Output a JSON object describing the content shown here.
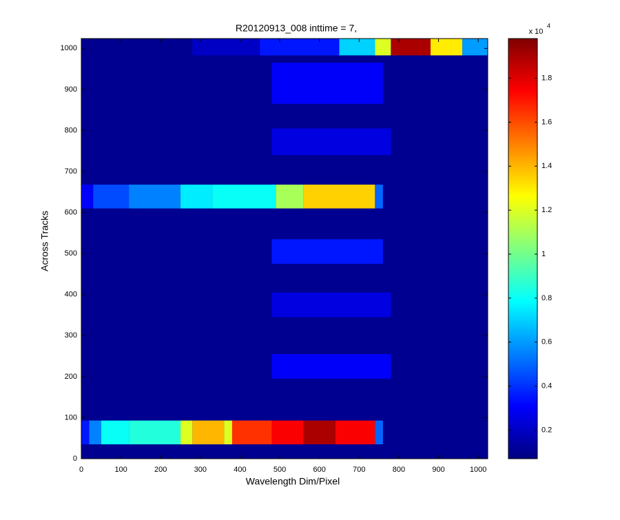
{
  "chart_data": {
    "type": "heatmap",
    "title": "R20120913_008 inttime = 7,",
    "x_label": "Wavelength Dim/Pixel",
    "y_label": "Across Tracks",
    "xlim": [
      0,
      1024
    ],
    "ylim": [
      0,
      1024
    ],
    "xticks": [
      0,
      100,
      200,
      300,
      400,
      500,
      600,
      700,
      800,
      900,
      1000
    ],
    "yticks": [
      0,
      100,
      200,
      300,
      400,
      500,
      600,
      700,
      800,
      900,
      1000
    ],
    "colormap": "jet",
    "clim": [
      0.07,
      1.98
    ],
    "colorbar_ticks": [
      0.2,
      0.4,
      0.6,
      0.8,
      1,
      1.2,
      1.4,
      1.6,
      1.8
    ],
    "colorbar_multiplier": "x 10",
    "colorbar_exponent": 4,
    "cells": [
      {
        "x": [
          0,
          1024
        ],
        "y": [
          0,
          1024
        ],
        "value": 0.1
      },
      {
        "x": [
          0,
          20
        ],
        "y": [
          35,
          93
        ],
        "value": 0.35
      },
      {
        "x": [
          20,
          50
        ],
        "y": [
          35,
          93
        ],
        "value": 0.55
      },
      {
        "x": [
          50,
          120
        ],
        "y": [
          35,
          93
        ],
        "value": 0.8
      },
      {
        "x": [
          120,
          250
        ],
        "y": [
          35,
          93
        ],
        "value": 0.85
      },
      {
        "x": [
          250,
          280
        ],
        "y": [
          35,
          93
        ],
        "value": 1.2
      },
      {
        "x": [
          280,
          360
        ],
        "y": [
          35,
          93
        ],
        "value": 1.4
      },
      {
        "x": [
          360,
          380
        ],
        "y": [
          35,
          93
        ],
        "value": 1.2
      },
      {
        "x": [
          380,
          480
        ],
        "y": [
          35,
          93
        ],
        "value": 1.65
      },
      {
        "x": [
          480,
          560
        ],
        "y": [
          35,
          93
        ],
        "value": 1.75
      },
      {
        "x": [
          560,
          640
        ],
        "y": [
          35,
          93
        ],
        "value": 1.9
      },
      {
        "x": [
          640,
          740
        ],
        "y": [
          35,
          93
        ],
        "value": 1.75
      },
      {
        "x": [
          740,
          760
        ],
        "y": [
          35,
          93
        ],
        "value": 0.5
      },
      {
        "x": [
          0,
          30
        ],
        "y": [
          610,
          668
        ],
        "value": 0.3
      },
      {
        "x": [
          30,
          120
        ],
        "y": [
          610,
          668
        ],
        "value": 0.45
      },
      {
        "x": [
          120,
          250
        ],
        "y": [
          610,
          668
        ],
        "value": 0.55
      },
      {
        "x": [
          250,
          330
        ],
        "y": [
          610,
          668
        ],
        "value": 0.75
      },
      {
        "x": [
          330,
          490
        ],
        "y": [
          610,
          668
        ],
        "value": 0.8
      },
      {
        "x": [
          490,
          560
        ],
        "y": [
          610,
          668
        ],
        "value": 1.1
      },
      {
        "x": [
          560,
          740
        ],
        "y": [
          610,
          668
        ],
        "value": 1.35
      },
      {
        "x": [
          740,
          760
        ],
        "y": [
          610,
          668
        ],
        "value": 0.5
      },
      {
        "x": [
          480,
          760
        ],
        "y": [
          865,
          965
        ],
        "value": 0.3
      },
      {
        "x": [
          480,
          780
        ],
        "y": [
          740,
          805
        ],
        "value": 0.25
      },
      {
        "x": [
          480,
          760
        ],
        "y": [
          475,
          535
        ],
        "value": 0.35
      },
      {
        "x": [
          480,
          780
        ],
        "y": [
          345,
          405
        ],
        "value": 0.25
      },
      {
        "x": [
          480,
          780
        ],
        "y": [
          195,
          255
        ],
        "value": 0.3
      },
      {
        "x": [
          280,
          450
        ],
        "y": [
          983,
          1024
        ],
        "value": 0.2
      },
      {
        "x": [
          450,
          650
        ],
        "y": [
          983,
          1024
        ],
        "value": 0.35
      },
      {
        "x": [
          650,
          740
        ],
        "y": [
          983,
          1024
        ],
        "value": 0.7
      },
      {
        "x": [
          740,
          780
        ],
        "y": [
          983,
          1024
        ],
        "value": 1.2
      },
      {
        "x": [
          780,
          880
        ],
        "y": [
          983,
          1024
        ],
        "value": 1.9
      },
      {
        "x": [
          880,
          960
        ],
        "y": [
          983,
          1024
        ],
        "value": 1.3
      },
      {
        "x": [
          960,
          1024
        ],
        "y": [
          983,
          1024
        ],
        "value": 0.6
      }
    ]
  }
}
